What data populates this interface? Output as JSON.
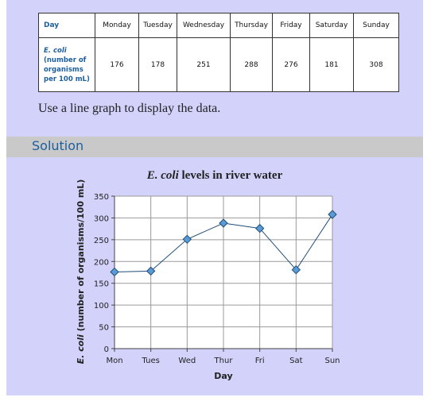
{
  "table": {
    "header_label": "Day",
    "days": [
      "Monday",
      "Tuesday",
      "Wednesday",
      "Thursday",
      "Friday",
      "Saturday",
      "Sunday"
    ],
    "row_label_lines": [
      "E. coli",
      "(number of",
      "organisms",
      "per 100 mL)"
    ],
    "values": [
      "176",
      "178",
      "251",
      "288",
      "276",
      "181",
      "308"
    ]
  },
  "instruction": "Use a line graph to display the data.",
  "solution_heading": "Solution",
  "chart_data": {
    "type": "line",
    "title_italic": "E. coli",
    "title_rest": " levels in river water",
    "xlabel": "Day",
    "ylabel_italic": "E. coli",
    "ylabel_rest": " (number of organisms/100 mL)",
    "categories": [
      "Mon",
      "Tues",
      "Wed",
      "Thur",
      "Fri",
      "Sat",
      "Sun"
    ],
    "values": [
      176,
      178,
      251,
      288,
      276,
      181,
      308
    ],
    "ylim": [
      0,
      350
    ],
    "yticks": [
      0,
      50,
      100,
      150,
      200,
      250,
      300,
      350
    ],
    "grid": true,
    "line_color": "#1f4e79",
    "marker_fill": "#5b9bd5",
    "grid_color": "#9a9a9a",
    "accent_color": "#1c5f9e"
  }
}
